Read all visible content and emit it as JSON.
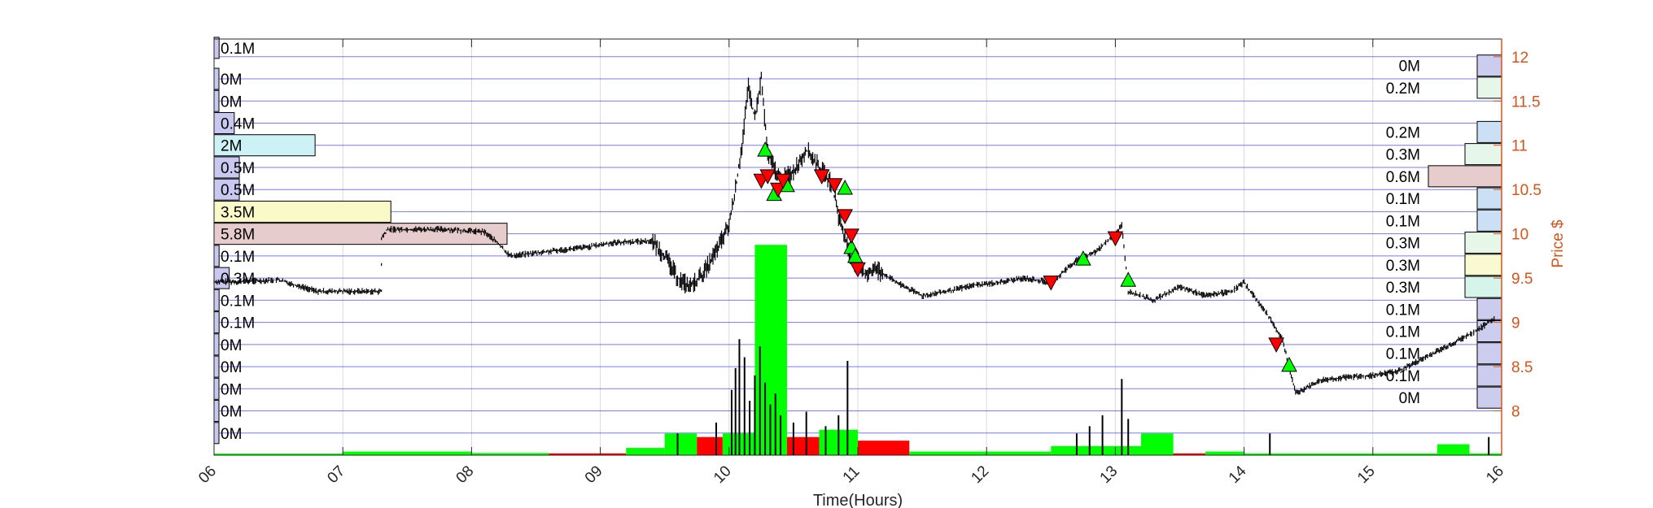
{
  "chart_data": {
    "type": "candlestick",
    "xlabel": "Time(Hours)",
    "ylabel_right": "Price $",
    "x_ticks": [
      "06",
      "07",
      "08",
      "09",
      "10",
      "11",
      "12",
      "13",
      "14",
      "15",
      "16"
    ],
    "x_range": [
      6,
      16
    ],
    "y_ticks": [
      "8",
      "8.5",
      "9",
      "9.5",
      "10",
      "10.5",
      "11",
      "11.5",
      "12"
    ],
    "y_range": [
      7.5,
      12.2
    ],
    "grid": true,
    "colors": {
      "price_axis": "#d95319",
      "up": "#00ff00",
      "down": "#ff0000",
      "grid": "#d9d9d9",
      "band_line": "#4040ff",
      "candle": "#000000"
    },
    "left_volume_profile": [
      {
        "label": "0.1M",
        "price": 12.1,
        "value": 0.1,
        "color": "#c8c8f0"
      },
      {
        "label": "0M",
        "price": 11.75,
        "value": 0.0,
        "color": "#c8c8f0"
      },
      {
        "label": "0M",
        "price": 11.5,
        "value": 0.0,
        "color": "#c8c8f0"
      },
      {
        "label": "0.4M",
        "price": 11.25,
        "value": 0.4,
        "color": "#c8c8f0"
      },
      {
        "label": "2M",
        "price": 11.0,
        "value": 2.0,
        "color": "#ccf2f5"
      },
      {
        "label": "0.5M",
        "price": 10.75,
        "value": 0.5,
        "color": "#c8c8f0"
      },
      {
        "label": "0.5M",
        "price": 10.5,
        "value": 0.5,
        "color": "#c8c8f0"
      },
      {
        "label": "3.5M",
        "price": 10.25,
        "value": 3.5,
        "color": "#fafac8"
      },
      {
        "label": "5.8M",
        "price": 10.0,
        "value": 5.8,
        "color": "#e6cccc"
      },
      {
        "label": "0.1M",
        "price": 9.75,
        "value": 0.1,
        "color": "#c8c8f0"
      },
      {
        "label": "0.3M",
        "price": 9.5,
        "value": 0.3,
        "color": "#c8c8f0"
      },
      {
        "label": "0.1M",
        "price": 9.25,
        "value": 0.1,
        "color": "#c8c8f0"
      },
      {
        "label": "0.1M",
        "price": 9.0,
        "value": 0.1,
        "color": "#c8c8f0"
      },
      {
        "label": "0M",
        "price": 8.75,
        "value": 0.0,
        "color": "#c8c8f0"
      },
      {
        "label": "0M",
        "price": 8.5,
        "value": 0.0,
        "color": "#c8c8f0"
      },
      {
        "label": "0M",
        "price": 8.25,
        "value": 0.0,
        "color": "#c8c8f0"
      },
      {
        "label": "0M",
        "price": 8.0,
        "value": 0.0,
        "color": "#c8c8f0"
      },
      {
        "label": "0M",
        "price": 7.75,
        "value": 0.0,
        "color": "#c8c8f0"
      }
    ],
    "right_volume_profile": [
      {
        "label": "0M",
        "price": 11.9,
        "value": 0.0,
        "color": "#ccccee"
      },
      {
        "label": "0.2M",
        "price": 11.65,
        "value": 0.2,
        "color": "#e6f7ea"
      },
      {
        "label": "0.2M",
        "price": 11.15,
        "value": 0.2,
        "color": "#cce0f5"
      },
      {
        "label": "0.3M",
        "price": 10.9,
        "value": 0.3,
        "color": "#e6f7ea"
      },
      {
        "label": "0.6M",
        "price": 10.65,
        "value": 0.6,
        "color": "#e6cccc"
      },
      {
        "label": "0.1M",
        "price": 10.4,
        "value": 0.1,
        "color": "#cce0f5"
      },
      {
        "label": "0.1M",
        "price": 10.15,
        "value": 0.1,
        "color": "#cce0f5"
      },
      {
        "label": "0.3M",
        "price": 9.9,
        "value": 0.3,
        "color": "#e6f7ea"
      },
      {
        "label": "0.3M",
        "price": 9.65,
        "value": 0.3,
        "color": "#fafad2"
      },
      {
        "label": "0.3M",
        "price": 9.4,
        "value": 0.3,
        "color": "#d6f5ea"
      },
      {
        "label": "0.1M",
        "price": 9.15,
        "value": 0.1,
        "color": "#ccccee"
      },
      {
        "label": "0.1M",
        "price": 8.9,
        "value": 0.1,
        "color": "#ccccee"
      },
      {
        "label": "0.1M",
        "price": 8.65,
        "value": 0.1,
        "color": "#ccccee"
      },
      {
        "label": "0.1M",
        "price": 8.4,
        "value": 0.1,
        "color": "#ccccee"
      },
      {
        "label": "0M",
        "price": 8.15,
        "value": 0.0,
        "color": "#ccccee"
      }
    ],
    "price_series": [
      [
        6.0,
        9.46
      ],
      [
        6.2,
        9.46
      ],
      [
        6.5,
        9.48
      ],
      [
        6.8,
        9.35
      ],
      [
        7.3,
        9.35
      ],
      [
        7.3,
        9.95
      ],
      [
        7.35,
        10.05
      ],
      [
        7.8,
        10.05
      ],
      [
        8.1,
        10.02
      ],
      [
        8.2,
        9.9
      ],
      [
        8.3,
        9.75
      ],
      [
        8.6,
        9.8
      ],
      [
        8.9,
        9.85
      ],
      [
        9.1,
        9.9
      ],
      [
        9.4,
        9.92
      ],
      [
        9.5,
        9.75
      ],
      [
        9.6,
        9.5
      ],
      [
        9.7,
        9.4
      ],
      [
        9.8,
        9.55
      ],
      [
        9.9,
        9.8
      ],
      [
        10.0,
        10.1
      ],
      [
        10.05,
        10.5
      ],
      [
        10.1,
        11.0
      ],
      [
        10.15,
        11.65
      ],
      [
        10.2,
        11.3
      ],
      [
        10.25,
        11.75
      ],
      [
        10.3,
        10.9
      ],
      [
        10.4,
        10.6
      ],
      [
        10.5,
        10.7
      ],
      [
        10.6,
        10.95
      ],
      [
        10.7,
        10.75
      ],
      [
        10.8,
        10.55
      ],
      [
        10.85,
        10.2
      ],
      [
        10.9,
        9.95
      ],
      [
        10.95,
        9.7
      ],
      [
        11.05,
        9.55
      ],
      [
        11.15,
        9.6
      ],
      [
        11.3,
        9.45
      ],
      [
        11.5,
        9.3
      ],
      [
        11.7,
        9.35
      ],
      [
        11.9,
        9.42
      ],
      [
        12.1,
        9.45
      ],
      [
        12.3,
        9.5
      ],
      [
        12.5,
        9.45
      ],
      [
        12.7,
        9.7
      ],
      [
        12.85,
        9.8
      ],
      [
        13.0,
        10.0
      ],
      [
        13.05,
        10.1
      ],
      [
        13.1,
        9.35
      ],
      [
        13.3,
        9.25
      ],
      [
        13.5,
        9.4
      ],
      [
        13.7,
        9.3
      ],
      [
        13.9,
        9.35
      ],
      [
        14.0,
        9.45
      ],
      [
        14.2,
        9.05
      ],
      [
        14.3,
        8.8
      ],
      [
        14.4,
        8.2
      ],
      [
        14.6,
        8.35
      ],
      [
        14.8,
        8.38
      ],
      [
        15.0,
        8.4
      ],
      [
        15.2,
        8.45
      ],
      [
        15.4,
        8.6
      ],
      [
        15.6,
        8.75
      ],
      [
        15.8,
        8.9
      ],
      [
        15.95,
        9.05
      ]
    ],
    "buy_signals": [
      [
        10.28,
        10.95
      ],
      [
        10.35,
        10.45
      ],
      [
        10.45,
        10.55
      ],
      [
        10.9,
        10.52
      ],
      [
        10.95,
        9.85
      ],
      [
        10.98,
        9.75
      ],
      [
        12.75,
        9.72
      ],
      [
        13.1,
        9.48
      ],
      [
        14.35,
        8.52
      ]
    ],
    "sell_signals": [
      [
        10.25,
        10.6
      ],
      [
        10.3,
        10.65
      ],
      [
        10.38,
        10.5
      ],
      [
        10.42,
        10.6
      ],
      [
        10.72,
        10.65
      ],
      [
        10.82,
        10.55
      ],
      [
        10.9,
        10.2
      ],
      [
        10.95,
        9.98
      ],
      [
        11.0,
        9.6
      ],
      [
        12.5,
        9.45
      ],
      [
        13.0,
        9.95
      ],
      [
        14.25,
        8.75
      ]
    ],
    "volume_bars": [
      {
        "x0": 6.0,
        "x1": 7.0,
        "value": 0.02,
        "dir": "up"
      },
      {
        "x0": 7.0,
        "x1": 8.0,
        "value": 0.1,
        "dir": "up"
      },
      {
        "x0": 8.0,
        "x1": 8.6,
        "value": 0.06,
        "dir": "up"
      },
      {
        "x0": 8.6,
        "x1": 9.2,
        "value": 0.05,
        "dir": "down"
      },
      {
        "x0": 9.2,
        "x1": 9.5,
        "value": 0.2,
        "dir": "up"
      },
      {
        "x0": 9.5,
        "x1": 9.75,
        "value": 0.6,
        "dir": "up"
      },
      {
        "x0": 9.75,
        "x1": 9.95,
        "value": 0.5,
        "dir": "down"
      },
      {
        "x0": 9.95,
        "x1": 10.2,
        "value": 0.6,
        "dir": "up"
      },
      {
        "x0": 10.2,
        "x1": 10.45,
        "value": 5.8,
        "dir": "up"
      },
      {
        "x0": 10.45,
        "x1": 10.7,
        "value": 0.5,
        "dir": "down"
      },
      {
        "x0": 10.7,
        "x1": 11.0,
        "value": 0.7,
        "dir": "up"
      },
      {
        "x0": 11.0,
        "x1": 11.4,
        "value": 0.4,
        "dir": "down"
      },
      {
        "x0": 11.4,
        "x1": 12.0,
        "value": 0.1,
        "dir": "up"
      },
      {
        "x0": 12.0,
        "x1": 12.5,
        "value": 0.1,
        "dir": "up"
      },
      {
        "x0": 12.5,
        "x1": 12.9,
        "value": 0.25,
        "dir": "up"
      },
      {
        "x0": 12.9,
        "x1": 13.2,
        "value": 0.25,
        "dir": "up"
      },
      {
        "x0": 13.2,
        "x1": 13.45,
        "value": 0.6,
        "dir": "up"
      },
      {
        "x0": 13.45,
        "x1": 13.7,
        "value": 0.05,
        "dir": "down"
      },
      {
        "x0": 13.7,
        "x1": 14.0,
        "value": 0.1,
        "dir": "up"
      },
      {
        "x0": 14.0,
        "x1": 15.5,
        "value": 0.05,
        "dir": "up"
      },
      {
        "x0": 15.5,
        "x1": 15.75,
        "value": 0.3,
        "dir": "up"
      },
      {
        "x0": 15.75,
        "x1": 16.0,
        "value": 0.05,
        "dir": "up"
      }
    ],
    "volume_spikes": [
      [
        10.02,
        1.8
      ],
      [
        10.05,
        2.4
      ],
      [
        10.08,
        3.2
      ],
      [
        10.12,
        2.7
      ],
      [
        10.16,
        1.5
      ],
      [
        10.2,
        2.2
      ],
      [
        10.24,
        3.0
      ],
      [
        10.28,
        2.0
      ],
      [
        10.32,
        1.4
      ],
      [
        10.36,
        1.7
      ],
      [
        10.4,
        1.1
      ],
      [
        10.5,
        0.9
      ],
      [
        10.6,
        1.2
      ],
      [
        10.75,
        0.8
      ],
      [
        10.85,
        1.1
      ],
      [
        10.92,
        2.6
      ],
      [
        9.6,
        0.6
      ],
      [
        9.9,
        0.9
      ],
      [
        12.7,
        0.6
      ],
      [
        12.8,
        0.8
      ],
      [
        12.9,
        1.1
      ],
      [
        13.05,
        2.1
      ],
      [
        13.1,
        1.0
      ],
      [
        14.2,
        0.6
      ],
      [
        15.9,
        0.5
      ]
    ],
    "volume_max": 6.5
  }
}
